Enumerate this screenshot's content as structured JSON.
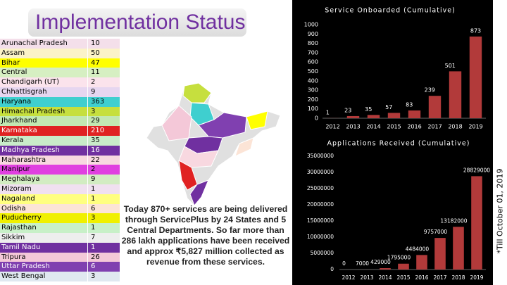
{
  "title": "Implementation Status",
  "table": {
    "rows": [
      [
        "Arunachal Pradesh",
        10
      ],
      [
        "Assam",
        50
      ],
      [
        "Bihar",
        47
      ],
      [
        "Central",
        11
      ],
      [
        "Chandigarh (UT)",
        2
      ],
      [
        "Chhattisgrah",
        9
      ],
      [
        "Haryana",
        363
      ],
      [
        "Himachal Pradesh",
        3
      ],
      [
        "Jharkhand",
        29
      ],
      [
        "Karnataka",
        210
      ],
      [
        "Kerala",
        35
      ],
      [
        "Madhya Pradesh",
        16
      ],
      [
        "Maharashtra",
        22
      ],
      [
        "Manipur",
        2
      ],
      [
        "Meghalaya",
        9
      ],
      [
        "Mizoram",
        1
      ],
      [
        "Nagaland",
        1
      ],
      [
        "Odisha",
        6
      ],
      [
        "Puducherry",
        3
      ],
      [
        "Rajasthan",
        1
      ],
      [
        "Sikkim",
        7
      ],
      [
        "Tamil Nadu",
        1
      ],
      [
        "Tripura",
        26
      ],
      [
        "Uttar Pradesh",
        6
      ],
      [
        "West Bengal",
        3
      ]
    ],
    "row_colors": [
      "#f4dfea",
      "#fbf3c8",
      "#ffff00",
      "#d6efc2",
      "#fbe3ec",
      "#e6d6f0",
      "#3fcfcf",
      "#c6df3e",
      "#c2e8b2",
      "#e02222",
      "#c9ecc9",
      "#7030a0",
      "#f8d8e0",
      "#e040e0",
      "#d2ecc2",
      "#f0e0f0",
      "#ffff80",
      "#fce4d6",
      "#f0f000",
      "#c8f0c8",
      "#eeeeee",
      "#7030a0",
      "#f4c8d8",
      "#8040b0",
      "#e0e8f0"
    ]
  },
  "summary": "Today 870+ services are being delivered through ServicePlus by 24 States and 5 Central Departments. So far more than 286 lakh applications have been received and approx ₹5,827 million collected as revenue from these services.",
  "footnote": "*Till October 01, 2019",
  "chart_data": [
    {
      "type": "bar",
      "title": "Service Onboarded (Cumulative)",
      "categories": [
        "2012",
        "2013",
        "2014",
        "2015",
        "2016",
        "2017",
        "2018",
        "2019"
      ],
      "values": [
        1,
        23,
        35,
        57,
        83,
        239,
        501,
        873
      ],
      "color": "#b23a3a",
      "ylim": [
        0,
        1000
      ],
      "yticks": [
        0,
        100,
        200,
        300,
        400,
        500,
        600,
        700,
        800,
        900,
        1000
      ]
    },
    {
      "type": "bar",
      "title": "Applications Received (Cumulative)",
      "categories": [
        "2012",
        "2013",
        "2014",
        "2015",
        "2016",
        "2017",
        "2018",
        "2019"
      ],
      "values": [
        0,
        7000,
        429000,
        1795000,
        4484000,
        9757000,
        13182000,
        28829000
      ],
      "color": "#b23a3a",
      "ylim": [
        0,
        35000000
      ],
      "yticks": [
        0,
        5000000,
        10000000,
        15000000,
        20000000,
        25000000,
        30000000,
        35000000
      ]
    }
  ]
}
